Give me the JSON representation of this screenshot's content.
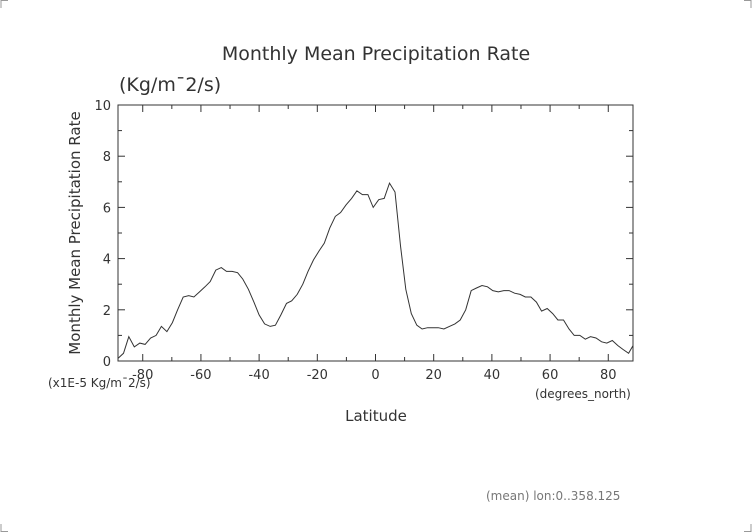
{
  "chart_data": {
    "type": "line",
    "title": "Monthly Mean Precipitation Rate",
    "subtitle": "(Kg/m¯2/s)",
    "ylabel": "Monthly Mean Precipitation Rate",
    "xlabel": "Latitude",
    "x_units": "(degrees_north)",
    "y_units": "(x1E-5 Kg/m¯2/s)",
    "footnote": "(mean) lon:0..358.125",
    "xlim": [
      -88.5,
      88.5
    ],
    "ylim": [
      0,
      10
    ],
    "x_ticks": [
      -80,
      -60,
      -40,
      -20,
      0,
      20,
      40,
      60,
      80
    ],
    "y_ticks": [
      0,
      2,
      4,
      6,
      8,
      10
    ],
    "grid": false,
    "line_color": "#333333",
    "series": [
      {
        "x": [
          -88.5,
          -86.6,
          -84.8,
          -82.9,
          -81.0,
          -79.2,
          -77.3,
          -75.4,
          -73.6,
          -71.7,
          -69.8,
          -68.0,
          -66.1,
          -64.2,
          -62.4,
          -60.5,
          -58.6,
          -56.8,
          -54.9,
          -53.0,
          -51.2,
          -49.3,
          -47.4,
          -45.6,
          -43.7,
          -41.8,
          -40.0,
          -38.1,
          -36.2,
          -34.4,
          -32.5,
          -30.6,
          -28.8,
          -26.9,
          -25.0,
          -23.2,
          -21.3,
          -19.4,
          -17.6,
          -15.7,
          -13.8,
          -12.0,
          -10.1,
          -8.2,
          -6.4,
          -4.5,
          -2.6,
          -0.8,
          1.1,
          3.0,
          4.8,
          6.7,
          8.6,
          10.4,
          12.3,
          14.2,
          16.0,
          17.9,
          19.8,
          21.6,
          23.5,
          25.4,
          27.3,
          29.1,
          31.0,
          32.9,
          34.7,
          36.6,
          38.5,
          40.3,
          42.2,
          44.1,
          45.9,
          47.8,
          49.7,
          51.5,
          53.4,
          55.3,
          57.1,
          59.0,
          60.9,
          62.7,
          64.6,
          66.5,
          68.3,
          70.2,
          72.1,
          73.9,
          75.8,
          77.7,
          79.5,
          81.4,
          83.3,
          85.1,
          87.0,
          88.5
        ],
        "y": [
          0.1,
          0.3,
          0.95,
          0.55,
          0.7,
          0.65,
          0.9,
          1.0,
          1.35,
          1.15,
          1.5,
          2.0,
          2.5,
          2.55,
          2.5,
          2.7,
          2.9,
          3.1,
          3.55,
          3.65,
          3.5,
          3.5,
          3.45,
          3.2,
          2.8,
          2.3,
          1.8,
          1.45,
          1.35,
          1.4,
          1.8,
          2.25,
          2.35,
          2.6,
          3.0,
          3.5,
          3.95,
          4.3,
          4.6,
          5.2,
          5.65,
          5.8,
          6.1,
          6.35,
          6.65,
          6.5,
          6.5,
          6.0,
          6.3,
          6.35,
          6.95,
          6.6,
          4.5,
          2.8,
          1.85,
          1.4,
          1.25,
          1.3,
          1.3,
          1.3,
          1.25,
          1.35,
          1.45,
          1.6,
          2.0,
          2.75,
          2.85,
          2.95,
          2.9,
          2.75,
          2.7,
          2.75,
          2.75,
          2.65,
          2.6,
          2.5,
          2.5,
          2.3,
          1.95,
          2.05,
          1.85,
          1.6,
          1.6,
          1.25,
          1.0,
          1.0,
          0.85,
          0.95,
          0.9,
          0.75,
          0.7,
          0.8,
          0.6,
          0.45,
          0.3,
          0.6
        ]
      }
    ]
  }
}
